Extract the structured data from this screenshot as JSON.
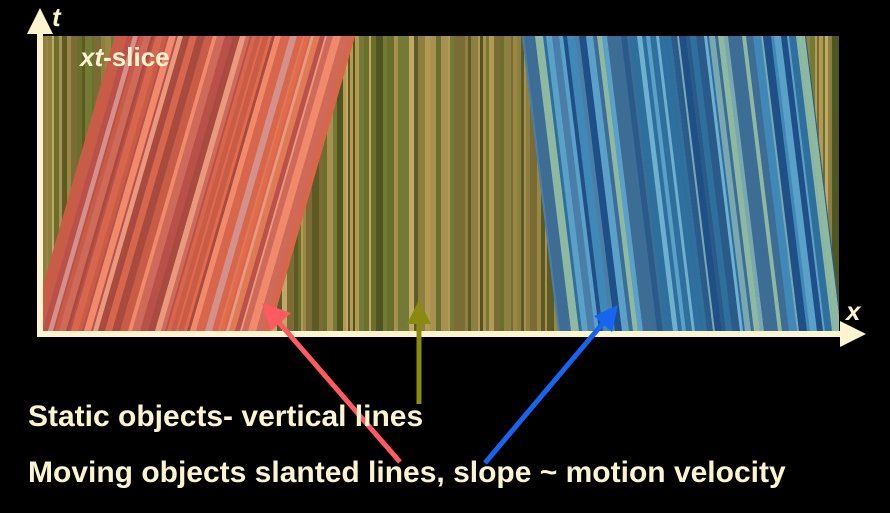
{
  "labels": {
    "inset_italic": "xt",
    "inset_rest": "-slice",
    "axis_t": "t",
    "axis_x": "x"
  },
  "captions": {
    "static": "Static objects- vertical lines",
    "moving": "Moving objects slanted lines, slope ~ motion velocity"
  },
  "colors": {
    "background": "#000000",
    "axis": "#fbf4cf",
    "text": "#fbf4cf",
    "arrow_red": "#ff5a5f",
    "arrow_olive": "#8a8a10",
    "arrow_blue": "#1565f0",
    "static_band": "#8a7a3a",
    "red_band": "#d8664c",
    "blue_band": "#3f88b8"
  },
  "icons": {
    "axis_arrows": "arrowhead-icon",
    "pointer_arrows": "arrow-icon"
  }
}
